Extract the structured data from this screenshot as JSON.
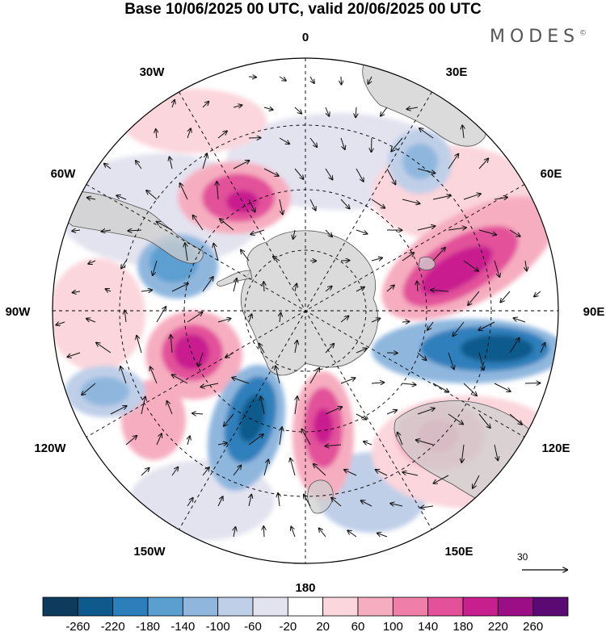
{
  "header": {
    "title": "Base 10/06/2025 00 UTC, valid 20/06/2025 00 UTC",
    "brand": "MODES",
    "brand_mark": "©"
  },
  "map": {
    "projection": "south-polar-stereographic",
    "lon_labels": {
      "n0": "0",
      "e30": "30E",
      "e60": "60E",
      "e90": "90E",
      "e120": "120E",
      "e150": "150E",
      "s180": "180",
      "w150": "150W",
      "w120": "120W",
      "w90": "90W",
      "w60": "60W",
      "w30": "30W"
    },
    "anomaly_centers": [
      {
        "sign": "positive",
        "lon": -45,
        "value": 220
      },
      {
        "sign": "positive",
        "lon": 75,
        "value": 220
      },
      {
        "sign": "negative",
        "lon": 95,
        "value": -220
      },
      {
        "sign": "negative",
        "lon": -75,
        "value": -140
      },
      {
        "sign": "positive",
        "lon": -105,
        "value": 220
      },
      {
        "sign": "negative",
        "lon": -160,
        "value": -220
      },
      {
        "sign": "positive",
        "lon": 170,
        "value": 220
      },
      {
        "sign": "positive",
        "lon": 130,
        "value": 140
      },
      {
        "sign": "negative",
        "lon": -115,
        "value": -140
      },
      {
        "sign": "negative",
        "lon": 35,
        "value": -100
      }
    ],
    "colors": {
      "land": "#cfcfcf",
      "coast": "#555555",
      "grid": "#000000"
    }
  },
  "vector_reference": {
    "label": "30"
  },
  "colorbar": {
    "ticks": [
      "-260",
      "-220",
      "-180",
      "-140",
      "-100",
      "-60",
      "-20",
      "20",
      "60",
      "100",
      "140",
      "180",
      "220",
      "260"
    ],
    "colors": [
      "#0d3b5c",
      "#0f5a8c",
      "#2d7fbb",
      "#5b9fd0",
      "#8fb7de",
      "#bfcfe8",
      "#e3e3f0",
      "#ffffff",
      "#fbd6dc",
      "#f6adc0",
      "#ef7fa8",
      "#e2519a",
      "#c81f8f",
      "#9b0e86",
      "#5a0a72"
    ]
  }
}
